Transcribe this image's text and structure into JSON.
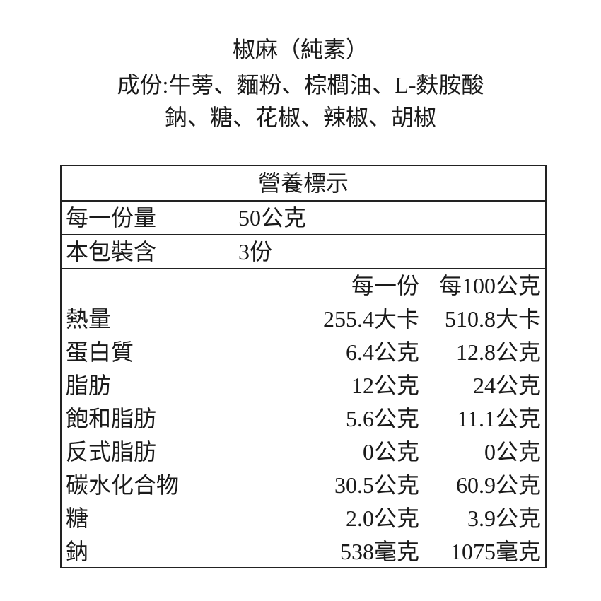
{
  "product": {
    "name": "椒麻（純素）",
    "ingredients_line1": "成份:牛蒡、麵粉、棕櫚油、L-麩胺酸",
    "ingredients_line2": "鈉、糖、花椒、辣椒、胡椒"
  },
  "nutrition": {
    "title": "營養標示",
    "serving_size_label": "每一份量",
    "serving_size_value": "50公克",
    "servings_label": "本包裝含",
    "servings_value": "3份",
    "col_per_serving": "每一份",
    "col_per_100": "每100公克",
    "rows": [
      {
        "name": "熱量",
        "per_serving": "255.4大卡",
        "per_100": "510.8大卡"
      },
      {
        "name": "蛋白質",
        "per_serving": "6.4公克",
        "per_100": "12.8公克"
      },
      {
        "name": "脂肪",
        "per_serving": "12公克",
        "per_100": "24公克"
      },
      {
        "name": "飽和脂肪",
        "per_serving": "5.6公克",
        "per_100": "11.1公克"
      },
      {
        "name": "反式脂肪",
        "per_serving": "0公克",
        "per_100": "0公克"
      },
      {
        "name": "碳水化合物",
        "per_serving": "30.5公克",
        "per_100": "60.9公克"
      },
      {
        "name": "糖",
        "per_serving": "2.0公克",
        "per_100": "3.9公克"
      },
      {
        "name": "鈉",
        "per_serving": "538毫克",
        "per_100": "1075毫克"
      }
    ]
  }
}
